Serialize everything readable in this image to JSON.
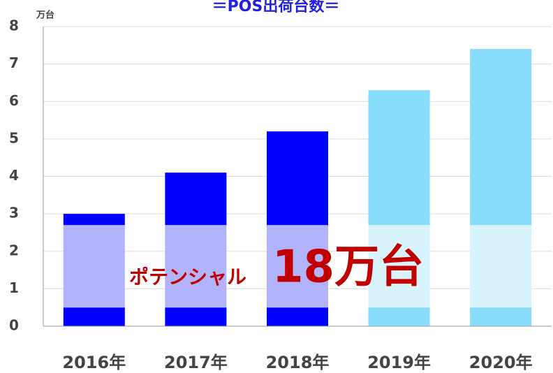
{
  "chart_data": {
    "type": "stacked_bar",
    "title": "＝POS出荷台数＝",
    "y_unit": "万台",
    "annotation": [
      "ポテンシャル",
      "18万台"
    ],
    "categories": [
      "2016年",
      "2017年",
      "2018年",
      "2019年",
      "2020年"
    ],
    "series": [
      {
        "colors": [
          "#0000ff",
          "#0000ff",
          "#0000ff",
          "#88ddfc",
          "#88ddfc"
        ],
        "values": [
          0.5,
          0.5,
          0.5,
          0.5,
          0.5
        ]
      },
      {
        "colors": [
          "#b3b3fc",
          "#b3b3fc",
          "#b3b3fc",
          "#d9f3fc",
          "#d9f3fc"
        ],
        "values": [
          2.2,
          2.2,
          2.2,
          2.2,
          2.2
        ]
      },
      {
        "colors": [
          "#0000ff",
          "#0000ff",
          "#0000ff",
          "#88ddfc",
          "#88ddfc"
        ],
        "values": [
          0.3,
          1.4,
          2.5,
          3.6,
          4.7
        ]
      }
    ],
    "ylim": [
      0,
      8
    ],
    "yticks": [
      0,
      1,
      2,
      3,
      4,
      5,
      6,
      7,
      8
    ],
    "grid": true
  }
}
